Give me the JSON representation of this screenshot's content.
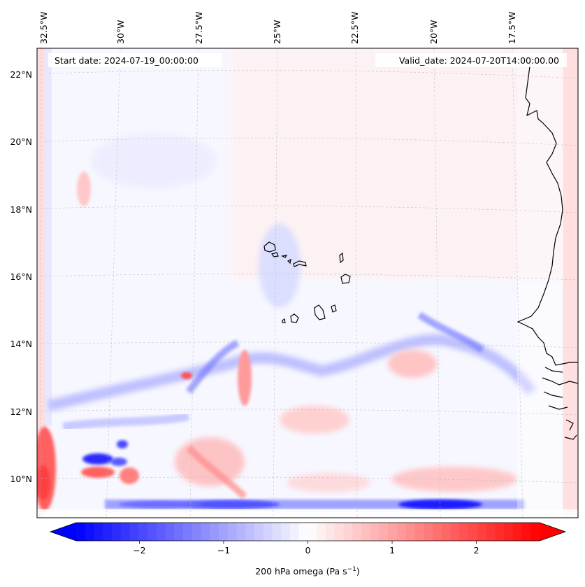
{
  "map": {
    "start_date_label": "Start date: 2024-07-19_00:00:00",
    "valid_date_label": "Valid_date: 2024-07-20T14:00:00.00",
    "lon_labels": [
      "32.5°W",
      "30°W",
      "27.5°W",
      "25°W",
      "22.5°W",
      "20°W",
      "17.5°W"
    ],
    "lat_labels": [
      "22°N",
      "20°N",
      "18°N",
      "16°N",
      "14°N",
      "12°N",
      "10°N"
    ],
    "field": "omega",
    "level": "200 hPa",
    "colormap": "bwr",
    "colors": {
      "negative": "#0000ff",
      "zero": "#ffffff",
      "positive": "#ff0000",
      "coast": "#000000",
      "grid": "#bbbbbb"
    }
  },
  "colorbar": {
    "label": "200 hPa omega (Pa s",
    "label_exponent": "−1",
    "label_close": ")",
    "ticks": [
      {
        "value": -2,
        "label": "−2"
      },
      {
        "value": -1,
        "label": "−1"
      },
      {
        "value": 0,
        "label": "0"
      },
      {
        "value": 1,
        "label": "1"
      },
      {
        "value": 2,
        "label": "2"
      }
    ],
    "vmin": -2.75,
    "vmax": 2.75,
    "extend": "both"
  }
}
